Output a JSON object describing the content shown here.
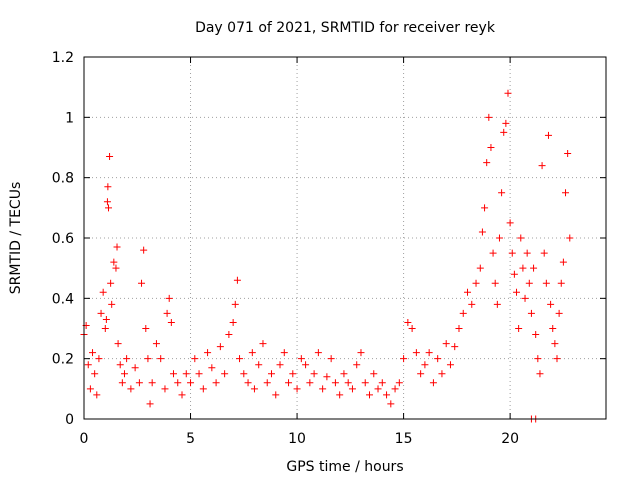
{
  "chart_data": {
    "type": "scatter",
    "title": "Day 071 of 2021, SRMTID for receiver reyk",
    "xlabel": "GPS time / hours",
    "ylabel": "SRMTID / TECUs",
    "xlim": [
      0,
      24.5
    ],
    "ylim": [
      0,
      1.2
    ],
    "x_ticks": [
      0,
      5,
      10,
      15,
      20
    ],
    "x_tick_labels": [
      "0",
      "5",
      "10",
      "15",
      "20"
    ],
    "y_ticks": [
      0,
      0.2,
      0.4,
      0.6,
      0.8,
      1.0,
      1.2
    ],
    "y_tick_labels": [
      "0",
      "0.2",
      "0.4",
      "0.6",
      "0.8",
      "1",
      "1.2"
    ],
    "grid": true,
    "series": [
      {
        "name": "SRMTID",
        "marker": "plus",
        "color": "#ff0000",
        "points": [
          [
            0.0,
            0.28
          ],
          [
            0.1,
            0.31
          ],
          [
            0.2,
            0.18
          ],
          [
            0.3,
            0.1
          ],
          [
            0.4,
            0.22
          ],
          [
            0.5,
            0.15
          ],
          [
            0.6,
            0.08
          ],
          [
            0.7,
            0.2
          ],
          [
            0.8,
            0.35
          ],
          [
            0.9,
            0.42
          ],
          [
            1.0,
            0.3
          ],
          [
            1.05,
            0.33
          ],
          [
            1.1,
            0.72
          ],
          [
            1.12,
            0.77
          ],
          [
            1.15,
            0.7
          ],
          [
            1.2,
            0.87
          ],
          [
            1.25,
            0.45
          ],
          [
            1.3,
            0.38
          ],
          [
            1.4,
            0.52
          ],
          [
            1.5,
            0.5
          ],
          [
            1.55,
            0.57
          ],
          [
            1.6,
            0.25
          ],
          [
            1.7,
            0.18
          ],
          [
            1.8,
            0.12
          ],
          [
            1.9,
            0.15
          ],
          [
            2.0,
            0.2
          ],
          [
            2.2,
            0.1
          ],
          [
            2.4,
            0.17
          ],
          [
            2.6,
            0.12
          ],
          [
            2.7,
            0.45
          ],
          [
            2.8,
            0.56
          ],
          [
            2.9,
            0.3
          ],
          [
            3.0,
            0.2
          ],
          [
            3.1,
            0.05
          ],
          [
            3.2,
            0.12
          ],
          [
            3.4,
            0.25
          ],
          [
            3.6,
            0.2
          ],
          [
            3.8,
            0.1
          ],
          [
            3.9,
            0.35
          ],
          [
            4.0,
            0.4
          ],
          [
            4.1,
            0.32
          ],
          [
            4.2,
            0.15
          ],
          [
            4.4,
            0.12
          ],
          [
            4.6,
            0.08
          ],
          [
            4.8,
            0.15
          ],
          [
            5.0,
            0.12
          ],
          [
            5.2,
            0.2
          ],
          [
            5.4,
            0.15
          ],
          [
            5.6,
            0.1
          ],
          [
            5.8,
            0.22
          ],
          [
            6.0,
            0.17
          ],
          [
            6.2,
            0.12
          ],
          [
            6.4,
            0.24
          ],
          [
            6.6,
            0.15
          ],
          [
            6.8,
            0.28
          ],
          [
            7.0,
            0.32
          ],
          [
            7.1,
            0.38
          ],
          [
            7.2,
            0.46
          ],
          [
            7.3,
            0.2
          ],
          [
            7.5,
            0.15
          ],
          [
            7.7,
            0.12
          ],
          [
            7.9,
            0.22
          ],
          [
            8.0,
            0.1
          ],
          [
            8.2,
            0.18
          ],
          [
            8.4,
            0.25
          ],
          [
            8.6,
            0.12
          ],
          [
            8.8,
            0.15
          ],
          [
            9.0,
            0.08
          ],
          [
            9.2,
            0.18
          ],
          [
            9.4,
            0.22
          ],
          [
            9.6,
            0.12
          ],
          [
            9.8,
            0.15
          ],
          [
            10.0,
            0.1
          ],
          [
            10.2,
            0.2
          ],
          [
            10.4,
            0.18
          ],
          [
            10.6,
            0.12
          ],
          [
            10.8,
            0.15
          ],
          [
            11.0,
            0.22
          ],
          [
            11.2,
            0.1
          ],
          [
            11.4,
            0.14
          ],
          [
            11.6,
            0.2
          ],
          [
            11.8,
            0.12
          ],
          [
            12.0,
            0.08
          ],
          [
            12.2,
            0.15
          ],
          [
            12.4,
            0.12
          ],
          [
            12.6,
            0.1
          ],
          [
            12.8,
            0.18
          ],
          [
            13.0,
            0.22
          ],
          [
            13.2,
            0.12
          ],
          [
            13.4,
            0.08
          ],
          [
            13.6,
            0.15
          ],
          [
            13.8,
            0.1
          ],
          [
            14.0,
            0.12
          ],
          [
            14.2,
            0.08
          ],
          [
            14.4,
            0.05
          ],
          [
            14.6,
            0.1
          ],
          [
            14.8,
            0.12
          ],
          [
            15.0,
            0.2
          ],
          [
            15.2,
            0.32
          ],
          [
            15.4,
            0.3
          ],
          [
            15.6,
            0.22
          ],
          [
            15.8,
            0.15
          ],
          [
            16.0,
            0.18
          ],
          [
            16.2,
            0.22
          ],
          [
            16.4,
            0.12
          ],
          [
            16.6,
            0.2
          ],
          [
            16.8,
            0.15
          ],
          [
            17.0,
            0.25
          ],
          [
            17.2,
            0.18
          ],
          [
            17.4,
            0.24
          ],
          [
            17.6,
            0.3
          ],
          [
            17.8,
            0.35
          ],
          [
            18.0,
            0.42
          ],
          [
            18.2,
            0.38
          ],
          [
            18.4,
            0.45
          ],
          [
            18.6,
            0.5
          ],
          [
            18.7,
            0.62
          ],
          [
            18.8,
            0.7
          ],
          [
            18.9,
            0.85
          ],
          [
            19.0,
            1.0
          ],
          [
            19.1,
            0.9
          ],
          [
            19.2,
            0.55
          ],
          [
            19.3,
            0.45
          ],
          [
            19.4,
            0.38
          ],
          [
            19.5,
            0.6
          ],
          [
            19.6,
            0.75
          ],
          [
            19.7,
            0.95
          ],
          [
            19.8,
            0.98
          ],
          [
            19.9,
            1.08
          ],
          [
            20.0,
            0.65
          ],
          [
            20.1,
            0.55
          ],
          [
            20.2,
            0.48
          ],
          [
            20.3,
            0.42
          ],
          [
            20.4,
            0.3
          ],
          [
            20.5,
            0.6
          ],
          [
            20.6,
            0.5
          ],
          [
            20.7,
            0.4
          ],
          [
            20.8,
            0.55
          ],
          [
            20.9,
            0.45
          ],
          [
            21.0,
            0.35
          ],
          [
            21.1,
            0.5
          ],
          [
            21.2,
            0.28
          ],
          [
            21.3,
            0.2
          ],
          [
            21.4,
            0.15
          ],
          [
            21.5,
            0.84
          ],
          [
            21.6,
            0.55
          ],
          [
            21.7,
            0.45
          ],
          [
            21.8,
            0.94
          ],
          [
            21.9,
            0.38
          ],
          [
            22.0,
            0.3
          ],
          [
            22.1,
            0.25
          ],
          [
            22.2,
            0.2
          ],
          [
            22.3,
            0.35
          ],
          [
            22.4,
            0.45
          ],
          [
            22.5,
            0.52
          ],
          [
            22.6,
            0.75
          ],
          [
            22.7,
            0.88
          ],
          [
            22.8,
            0.6
          ],
          [
            21.0,
            0.0
          ],
          [
            21.2,
            0.0
          ]
        ]
      }
    ]
  }
}
